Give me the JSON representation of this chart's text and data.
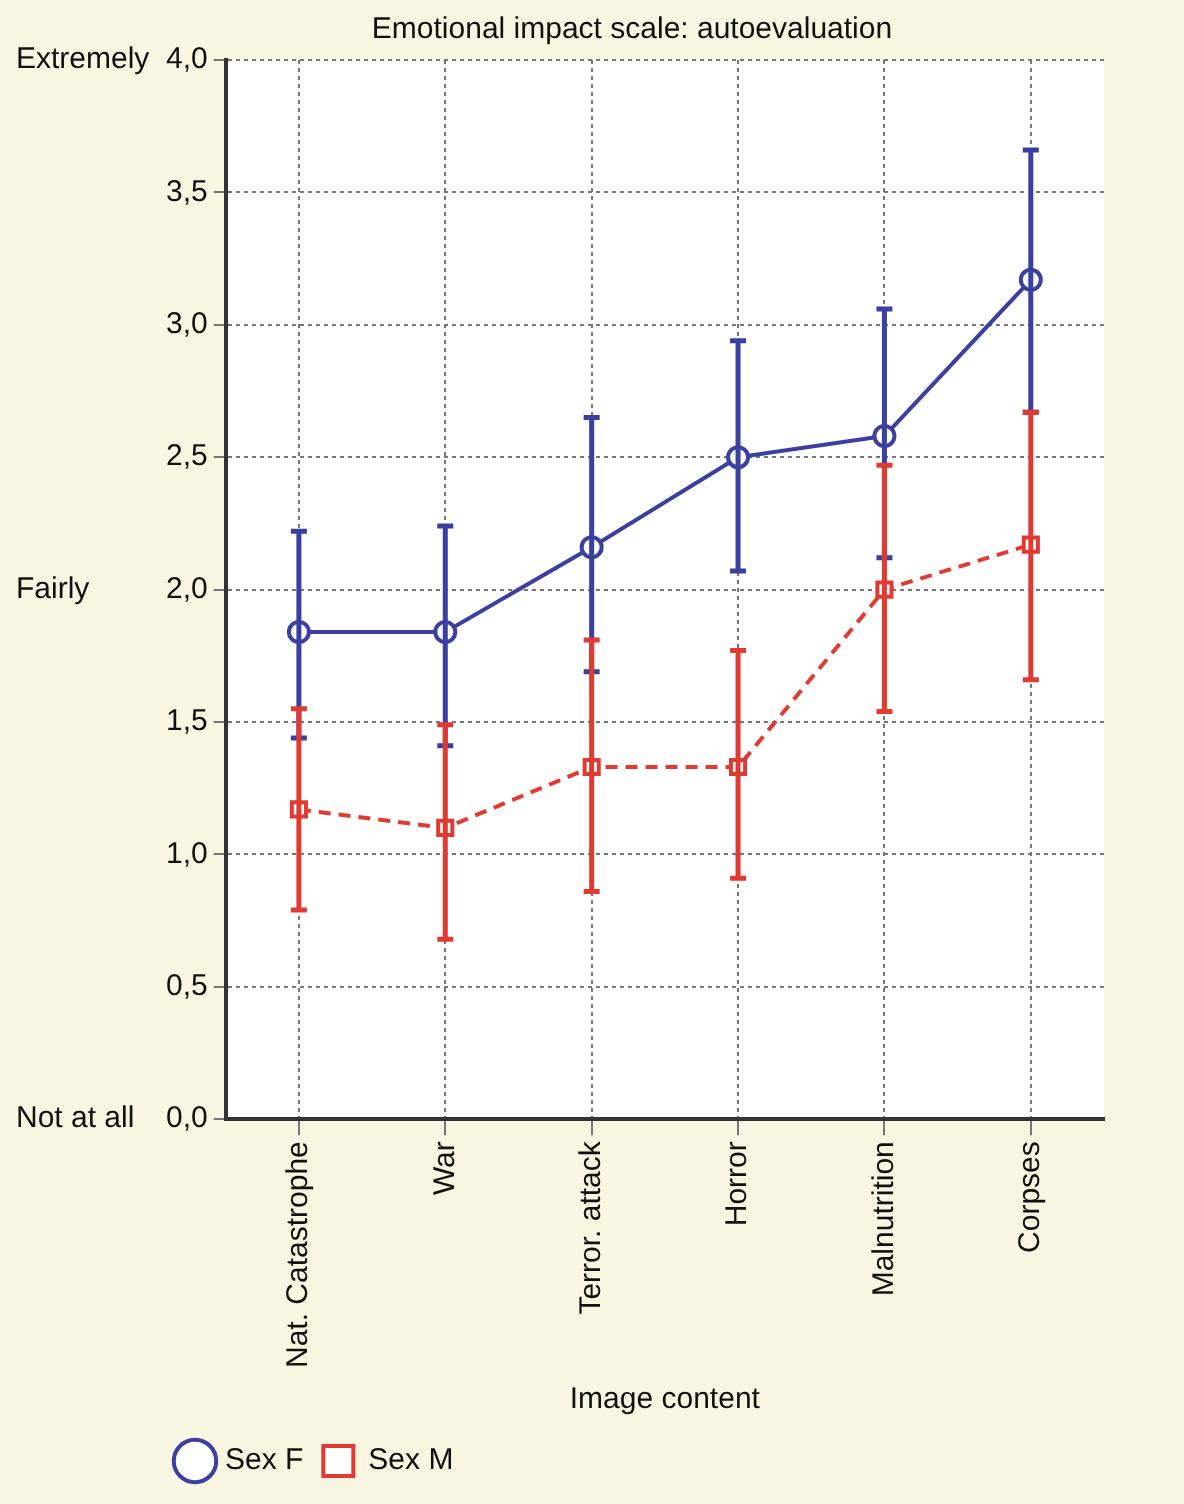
{
  "chart_data": {
    "type": "line",
    "title": "Emotional impact scale: autoevaluation",
    "xlabel": "Image content",
    "categories": [
      "Nat. Catastrophe",
      "War",
      "Terror. attack",
      "Horror",
      "Malnutrition",
      "Corpses"
    ],
    "series": [
      {
        "name": "Sex F",
        "color": "#3a3fa0",
        "marker": "circle",
        "line_style": "solid",
        "values": [
          1.84,
          1.84,
          2.16,
          2.5,
          2.58,
          3.17
        ],
        "errors": [
          [
            1.44,
            2.22
          ],
          [
            1.41,
            2.24
          ],
          [
            1.69,
            2.65
          ],
          [
            2.07,
            2.94
          ],
          [
            2.12,
            3.06
          ],
          [
            2.67,
            3.66
          ]
        ]
      },
      {
        "name": "Sex M",
        "color": "#e03a32",
        "marker": "square",
        "line_style": "dashed",
        "values": [
          1.17,
          1.1,
          1.33,
          1.33,
          2.0,
          2.17
        ],
        "errors": [
          [
            0.79,
            1.55
          ],
          [
            0.68,
            1.49
          ],
          [
            0.86,
            1.81
          ],
          [
            0.91,
            1.77
          ],
          [
            1.54,
            2.47
          ],
          [
            1.66,
            2.67
          ]
        ]
      }
    ],
    "ylim": [
      0,
      4
    ],
    "yticks": [
      {
        "value": 0,
        "label": "0,0"
      },
      {
        "value": 0.5,
        "label": "0,5"
      },
      {
        "value": 1,
        "label": "1,0"
      },
      {
        "value": 1.5,
        "label": "1,5"
      },
      {
        "value": 2,
        "label": "2,0"
      },
      {
        "value": 2.5,
        "label": "2,5"
      },
      {
        "value": 3,
        "label": "3,0"
      },
      {
        "value": 3.5,
        "label": "3,5"
      },
      {
        "value": 4,
        "label": "4,0"
      }
    ],
    "annotations": [
      "Extremely",
      "Fairly",
      "Not at all"
    ],
    "grid": true,
    "legend": "bottom left"
  }
}
